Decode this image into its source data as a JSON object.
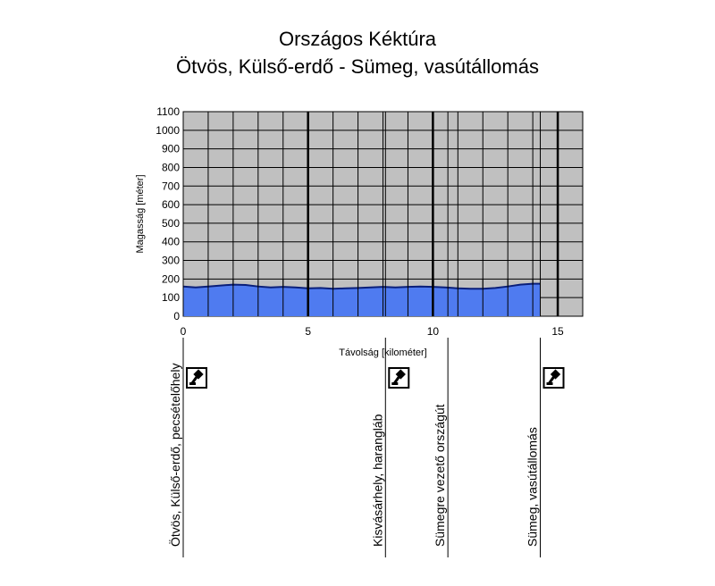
{
  "chart_data": {
    "type": "area",
    "title": "Országos Kéktúra",
    "subtitle": "Ötvös, Külső-erdő - Sümeg, vasútállomás",
    "xlabel": "Távolság [kilométer]",
    "ylabel": "Magasság [méter]",
    "xlim": [
      0,
      16
    ],
    "ylim": [
      0,
      1100
    ],
    "x_ticks": [
      0,
      5,
      10,
      15
    ],
    "y_ticks": [
      0,
      100,
      200,
      300,
      400,
      500,
      600,
      700,
      800,
      900,
      1000,
      1100
    ],
    "grid": true,
    "colors": {
      "fill": "#4f7bf0",
      "line": "#0a1f7a",
      "plot_bg": "#c0c0c0"
    },
    "series": [
      {
        "x": [
          0,
          0.5,
          1.0,
          1.5,
          2.0,
          2.5,
          3.0,
          3.5,
          4.0,
          4.5,
          5.0,
          5.5,
          6.0,
          6.5,
          7.0,
          7.5,
          8.0,
          8.5,
          9.0,
          9.5,
          10.0,
          10.5,
          11.0,
          11.5,
          12.0,
          12.5,
          13.0,
          13.5,
          14.0,
          14.3
        ],
        "values": [
          160,
          155,
          160,
          165,
          170,
          168,
          160,
          155,
          158,
          155,
          150,
          152,
          148,
          150,
          152,
          155,
          158,
          155,
          158,
          160,
          158,
          155,
          150,
          148,
          148,
          152,
          160,
          170,
          175,
          175
        ]
      }
    ],
    "waypoints": [
      {
        "x": 0,
        "label": "Ötvös, Külső-erdő, pecsételőhely",
        "stamp": true
      },
      {
        "x": 8.1,
        "label": "Kisvásárhely, harangláb",
        "stamp": true
      },
      {
        "x": 10.6,
        "label": "Sümegre vezető országút",
        "stamp": false
      },
      {
        "x": 14.3,
        "label": "Sümeg, vasútállomás",
        "stamp": true
      }
    ]
  }
}
